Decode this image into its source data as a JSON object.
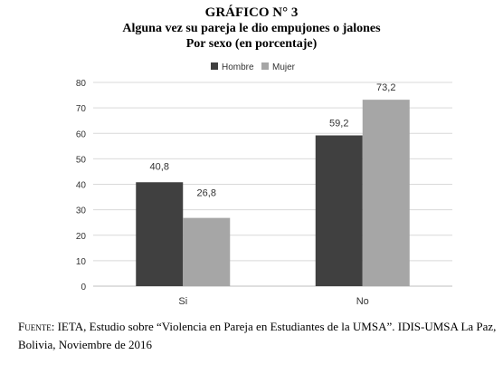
{
  "header": {
    "figure_number": "GRÁFICO N° 3",
    "title": "Alguna vez su pareja le dio empujones o jalones",
    "subtitle": "Por sexo (en porcentaje)"
  },
  "chart_data": {
    "type": "bar",
    "categories": [
      "Si",
      "No"
    ],
    "series": [
      {
        "name": "Hombre",
        "values": [
          40.8,
          59.2
        ],
        "labels": [
          "40,8",
          "59,2"
        ],
        "color": "#404040"
      },
      {
        "name": "Mujer",
        "values": [
          26.8,
          73.2
        ],
        "labels": [
          "26,8",
          "73,2"
        ],
        "color": "#a6a6a6"
      }
    ],
    "ylim": [
      0,
      80
    ],
    "yticks": [
      0,
      10,
      20,
      30,
      40,
      50,
      60,
      70,
      80
    ],
    "grid": true,
    "legend": "top-left"
  },
  "source": {
    "label": "Fuente:",
    "text": " IETA, Estudio sobre “Violencia en Pareja en Estudiantes de la UMSA”. IDIS-UMSA La Paz, Bolivia, Noviembre de 2016"
  }
}
